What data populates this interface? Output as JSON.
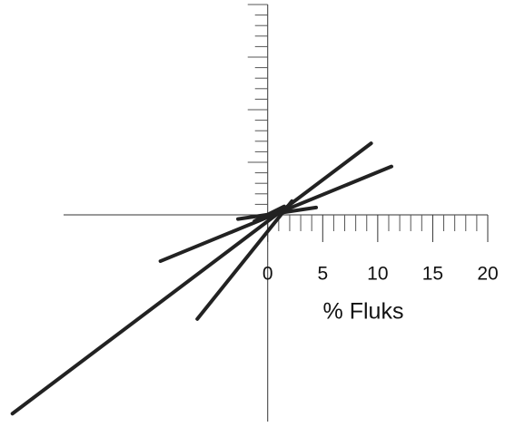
{
  "chart_data": {
    "type": "line",
    "x_label": "% Fluks",
    "xlim": [
      -24,
      20
    ],
    "ylim": [
      -20,
      20
    ],
    "xticks": [
      0,
      5,
      10,
      15,
      20
    ],
    "series": [
      {
        "color": "#222222",
        "x": [
          -23.2,
          9.4
        ],
        "values": [
          -18.9,
          6.8
        ]
      },
      {
        "color": "#222222",
        "x": [
          -9.75,
          11.25
        ],
        "values": [
          -4.4,
          4.6
        ]
      },
      {
        "color": "#222222",
        "x": [
          -6.4,
          2.2
        ],
        "values": [
          -9.9,
          1.3
        ]
      },
      {
        "color": "#222222",
        "x": [
          -2.7,
          4.4
        ],
        "values": [
          -0.4,
          0.7
        ]
      },
      {
        "color": "#222222",
        "x": [
          -1.2,
          1.5
        ],
        "values": [
          -0.6,
          0.8
        ]
      }
    ]
  }
}
